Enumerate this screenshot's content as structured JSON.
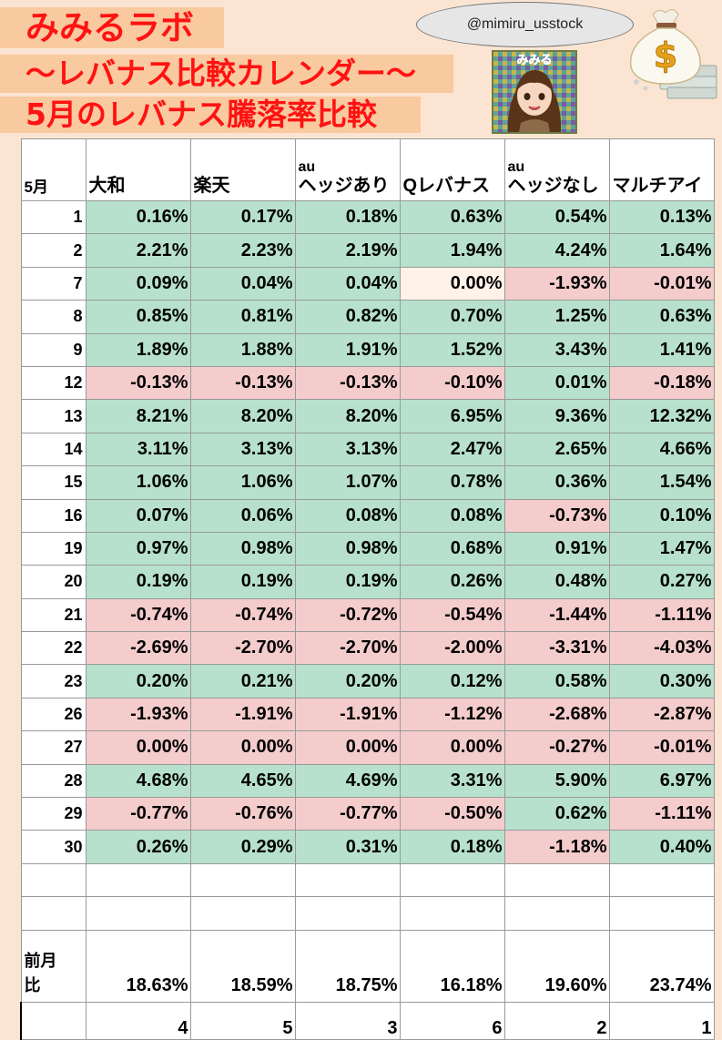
{
  "title": {
    "line1": "みみるラボ",
    "line2": "～レバナス比較カレンダー～",
    "line3": "5月のレバナス騰落率比較"
  },
  "handle": "@mimiru_usstock",
  "avatar_label": "みみる",
  "money_symbol": "$",
  "colors": {
    "title_red": "#ff1212",
    "title_bg": "#f9c99f",
    "page_bg": "#fbe5d2",
    "positive": "#b7e1cd",
    "negative": "#f4cccc"
  },
  "table": {
    "month_header": "5月",
    "columns": [
      {
        "line1": "",
        "line2": "大和"
      },
      {
        "line1": "",
        "line2": "楽天"
      },
      {
        "line1": "au",
        "line2": "ヘッジあり"
      },
      {
        "line1": "",
        "line2": "Qレバナス"
      },
      {
        "line1": "au",
        "line2": "ヘッジなし"
      },
      {
        "line1": "",
        "line2": "マルチアイ"
      }
    ],
    "rows": [
      {
        "day": "1",
        "values": [
          "0.16%",
          "0.17%",
          "0.18%",
          "0.63%",
          "0.54%",
          "0.13%"
        ]
      },
      {
        "day": "2",
        "values": [
          "2.21%",
          "2.23%",
          "2.19%",
          "1.94%",
          "4.24%",
          "1.64%"
        ]
      },
      {
        "day": "7",
        "values": [
          "0.09%",
          "0.04%",
          "0.04%",
          "0.00%",
          "-1.93%",
          "-0.01%"
        ]
      },
      {
        "day": "8",
        "values": [
          "0.85%",
          "0.81%",
          "0.82%",
          "0.70%",
          "1.25%",
          "0.63%"
        ]
      },
      {
        "day": "9",
        "values": [
          "1.89%",
          "1.88%",
          "1.91%",
          "1.52%",
          "3.43%",
          "1.41%"
        ]
      },
      {
        "day": "12",
        "values": [
          "-0.13%",
          "-0.13%",
          "-0.13%",
          "-0.10%",
          "0.01%",
          "-0.18%"
        ]
      },
      {
        "day": "13",
        "values": [
          "8.21%",
          "8.20%",
          "8.20%",
          "6.95%",
          "9.36%",
          "12.32%"
        ]
      },
      {
        "day": "14",
        "values": [
          "3.11%",
          "3.13%",
          "3.13%",
          "2.47%",
          "2.65%",
          "4.66%"
        ]
      },
      {
        "day": "15",
        "values": [
          "1.06%",
          "1.06%",
          "1.07%",
          "0.78%",
          "0.36%",
          "1.54%"
        ]
      },
      {
        "day": "16",
        "values": [
          "0.07%",
          "0.06%",
          "0.08%",
          "0.08%",
          "-0.73%",
          "0.10%"
        ]
      },
      {
        "day": "19",
        "values": [
          "0.97%",
          "0.98%",
          "0.98%",
          "0.68%",
          "0.91%",
          "1.47%"
        ]
      },
      {
        "day": "20",
        "values": [
          "0.19%",
          "0.19%",
          "0.19%",
          "0.26%",
          "0.48%",
          "0.27%"
        ]
      },
      {
        "day": "21",
        "values": [
          "-0.74%",
          "-0.74%",
          "-0.72%",
          "-0.54%",
          "-1.44%",
          "-1.11%"
        ]
      },
      {
        "day": "22",
        "values": [
          "-2.69%",
          "-2.70%",
          "-2.70%",
          "-2.00%",
          "-3.31%",
          "-4.03%"
        ]
      },
      {
        "day": "23",
        "values": [
          "0.20%",
          "0.21%",
          "0.20%",
          "0.12%",
          "0.58%",
          "0.30%"
        ]
      },
      {
        "day": "26",
        "values": [
          "-1.93%",
          "-1.91%",
          "-1.91%",
          "-1.12%",
          "-2.68%",
          "-2.87%"
        ]
      },
      {
        "day": "27",
        "values": [
          "0.00%",
          "0.00%",
          "0.00%",
          "0.00%",
          "-0.27%",
          "-0.01%"
        ]
      },
      {
        "day": "28",
        "values": [
          "4.68%",
          "4.65%",
          "4.69%",
          "3.31%",
          "5.90%",
          "6.97%"
        ]
      },
      {
        "day": "29",
        "values": [
          "-0.77%",
          "-0.76%",
          "-0.77%",
          "-0.50%",
          "0.62%",
          "-1.11%"
        ]
      },
      {
        "day": "30",
        "values": [
          "0.26%",
          "0.29%",
          "0.31%",
          "0.18%",
          "-1.18%",
          "0.40%"
        ]
      }
    ],
    "total_label_line1": "前月",
    "total_label_line2": "比",
    "totals": [
      "18.63%",
      "18.59%",
      "18.75%",
      "16.18%",
      "19.60%",
      "23.74%"
    ],
    "ranks": [
      "4",
      "5",
      "3",
      "6",
      "2",
      "1"
    ]
  }
}
